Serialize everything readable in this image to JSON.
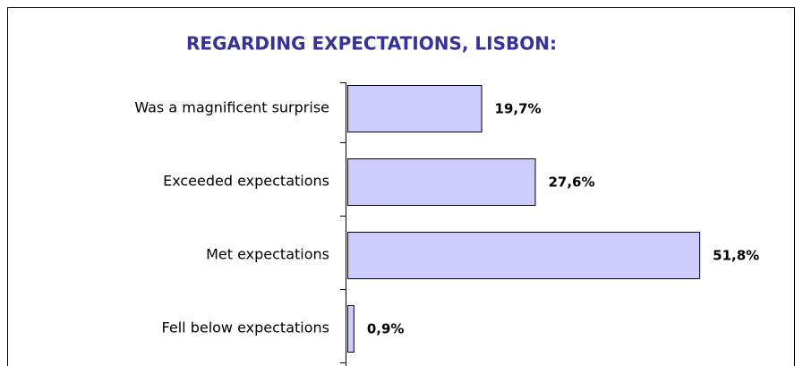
{
  "chart_data": {
    "type": "bar",
    "orientation": "horizontal",
    "title": "REGARDING EXPECTATIONS, LISBON:",
    "categories": [
      "Was a magnificent surprise",
      "Exceeded expectations",
      "Met expectations",
      "Fell below expectations"
    ],
    "values": [
      19.7,
      27.6,
      51.8,
      0.9
    ],
    "value_labels": [
      "19,7%",
      "27,6%",
      "51,8%",
      "0,9%"
    ],
    "color": "#ccccff"
  }
}
